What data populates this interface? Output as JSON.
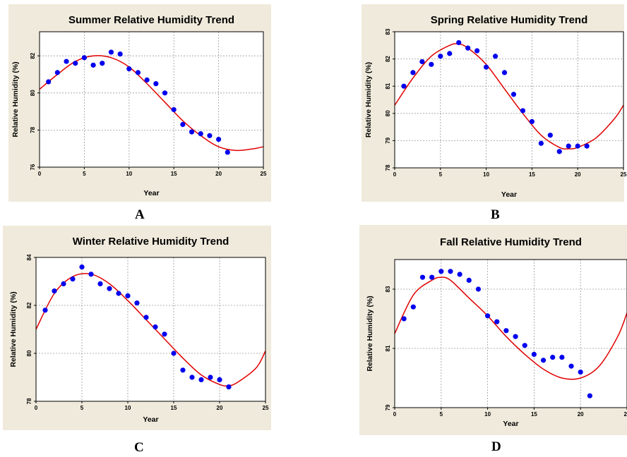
{
  "panel_letters": [
    "A",
    "B",
    "C",
    "D"
  ],
  "colors": {
    "panel_bg": "#efeadb",
    "plot_bg": "#ffffff",
    "points": "#0000ee",
    "curve": "#e00000",
    "grid": "#9a9a9a"
  },
  "chart_data": [
    {
      "type": "scatter",
      "title": "Summer Relative Humidity Trend",
      "xlabel": "Year",
      "ylabel": "Relative Humidity (%)",
      "xlim": [
        0,
        25
      ],
      "ylim": [
        76,
        83.3
      ],
      "xticks": [
        0,
        5,
        10,
        15,
        20,
        25
      ],
      "yticks": [
        76,
        78,
        80,
        82
      ],
      "grid": true,
      "series": [
        {
          "kind": "points",
          "x": [
            1,
            2,
            3,
            4,
            5,
            6,
            7,
            8,
            9,
            10,
            11,
            12,
            13,
            14,
            15,
            16,
            17,
            18,
            19,
            20,
            21
          ],
          "y": [
            80.6,
            81.1,
            81.7,
            81.6,
            81.9,
            81.5,
            81.6,
            82.2,
            82.1,
            81.3,
            81.1,
            80.7,
            80.5,
            80.0,
            79.1,
            78.3,
            77.9,
            77.8,
            77.7,
            77.5,
            76.8
          ]
        },
        {
          "kind": "fit-curve",
          "x": [
            0,
            2,
            4,
            6,
            8,
            10,
            12,
            14,
            16,
            18,
            20,
            22,
            24,
            25
          ],
          "y": [
            80.2,
            81.0,
            81.7,
            82.0,
            81.9,
            81.4,
            80.5,
            79.5,
            78.5,
            77.7,
            77.1,
            76.9,
            77.0,
            77.1
          ]
        }
      ]
    },
    {
      "type": "scatter",
      "title": "Spring Relative Humidity Trend",
      "xlabel": "Year",
      "ylabel": "Relative Humidity (%)",
      "xlim": [
        0,
        25
      ],
      "ylim": [
        78,
        83
      ],
      "xticks": [
        0,
        5,
        10,
        15,
        20,
        25
      ],
      "yticks": [
        78,
        79,
        80,
        81,
        82,
        83
      ],
      "grid": true,
      "series": [
        {
          "kind": "points",
          "x": [
            1,
            2,
            3,
            4,
            5,
            6,
            7,
            8,
            9,
            10,
            11,
            12,
            13,
            14,
            15,
            16,
            17,
            18,
            19,
            20,
            21
          ],
          "y": [
            81.0,
            81.5,
            81.9,
            81.8,
            82.1,
            82.2,
            82.6,
            82.4,
            82.3,
            81.7,
            82.1,
            81.5,
            80.7,
            80.1,
            79.7,
            78.9,
            79.2,
            78.6,
            78.8,
            78.8,
            78.8
          ]
        },
        {
          "kind": "fit-curve",
          "x": [
            0,
            2,
            4,
            6,
            7,
            8,
            10,
            12,
            14,
            16,
            18,
            19,
            20,
            22,
            24,
            25
          ],
          "y": [
            80.3,
            81.3,
            82.1,
            82.5,
            82.55,
            82.4,
            81.8,
            80.9,
            80.0,
            79.2,
            78.75,
            78.7,
            78.75,
            79.1,
            79.8,
            80.3
          ]
        }
      ]
    },
    {
      "type": "scatter",
      "title": "Winter Relative Humidity Trend",
      "xlabel": "Year",
      "ylabel": "Relative Humidity (%)",
      "xlim": [
        0,
        25
      ],
      "ylim": [
        78,
        84
      ],
      "xticks": [
        0,
        5,
        10,
        15,
        20,
        25
      ],
      "yticks": [
        78,
        80,
        82,
        84
      ],
      "grid": true,
      "series": [
        {
          "kind": "points",
          "x": [
            1,
            2,
            3,
            4,
            5,
            6,
            7,
            8,
            9,
            10,
            11,
            12,
            13,
            14,
            15,
            16,
            17,
            18,
            19,
            20,
            21
          ],
          "y": [
            81.8,
            82.6,
            82.9,
            83.1,
            83.6,
            83.3,
            82.9,
            82.7,
            82.5,
            82.4,
            82.1,
            81.5,
            81.1,
            80.8,
            80.0,
            79.3,
            79.0,
            78.9,
            79.0,
            78.9,
            78.6
          ]
        },
        {
          "kind": "fit-curve",
          "x": [
            0,
            2,
            4,
            6,
            8,
            10,
            12,
            14,
            16,
            18,
            20,
            21,
            22,
            24,
            25
          ],
          "y": [
            81.0,
            82.5,
            83.2,
            83.3,
            82.9,
            82.2,
            81.4,
            80.6,
            79.8,
            79.1,
            78.7,
            78.65,
            78.8,
            79.4,
            80.1
          ]
        }
      ]
    },
    {
      "type": "scatter",
      "title": "Fall Relative Humidity Trend",
      "xlabel": "Year",
      "ylabel": "Relative Humidity (%)",
      "xlim": [
        0,
        25
      ],
      "ylim": [
        79,
        84
      ],
      "xticks": [
        0,
        5,
        10,
        15,
        20,
        25
      ],
      "yticks": [
        79,
        81,
        83
      ],
      "grid": true,
      "series": [
        {
          "kind": "points",
          "x": [
            1,
            2,
            3,
            4,
            5,
            6,
            7,
            8,
            9,
            10,
            11,
            12,
            13,
            14,
            15,
            16,
            17,
            18,
            19,
            20,
            21
          ],
          "y": [
            82.0,
            82.4,
            83.4,
            83.4,
            83.6,
            83.6,
            83.5,
            83.3,
            83.0,
            82.1,
            81.9,
            81.6,
            81.4,
            81.1,
            80.8,
            80.6,
            80.7,
            80.7,
            80.4,
            80.2,
            79.4
          ]
        },
        {
          "kind": "fit-curve",
          "x": [
            0,
            2,
            4,
            5,
            6,
            8,
            10,
            12,
            14,
            16,
            18,
            20,
            22,
            24,
            25
          ],
          "y": [
            81.5,
            82.8,
            83.3,
            83.4,
            83.3,
            82.7,
            82.1,
            81.4,
            80.8,
            80.3,
            80.0,
            80.0,
            80.4,
            81.4,
            82.2
          ]
        }
      ]
    }
  ]
}
